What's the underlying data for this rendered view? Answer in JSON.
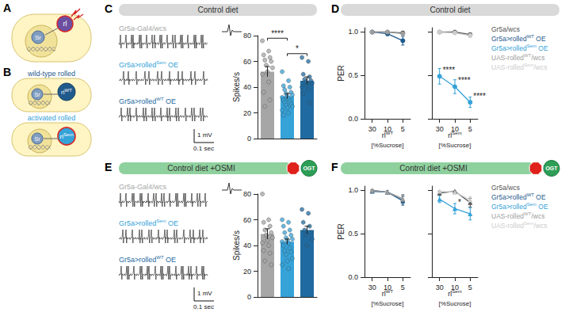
{
  "chart_data": [
    {
      "panel": "C",
      "type": "bar",
      "title": "Control diet",
      "ylabel": "Spikes/s",
      "categories": [
        null,
        null,
        null
      ],
      "traces": [
        {
          "text": "Gr5a-Gal4/wcs"
        },
        {
          "text": "Gr5a>rolled",
          "sup": "Sem",
          "after": " OE"
        },
        {
          "text": "Gr5a>rolled",
          "sup": "WT",
          "after": " OE"
        }
      ],
      "values": [
        52,
        33,
        45
      ],
      "errors": [
        4,
        2,
        3
      ],
      "colors": [
        "#a6a6a6",
        "#35a2d8",
        "#1f6aa0"
      ],
      "points": [
        [
          76,
          68,
          65,
          63,
          61,
          60,
          57,
          55,
          52,
          50,
          44,
          36,
          30,
          25
        ],
        [
          52,
          45,
          41,
          40,
          38,
          36,
          35,
          34,
          33,
          32,
          31,
          30,
          29,
          28,
          27,
          26,
          25,
          24,
          22,
          20,
          18
        ],
        [
          63,
          60,
          50,
          48,
          46,
          45,
          44,
          43,
          42,
          40,
          38,
          35,
          28
        ]
      ],
      "ylim": [
        0,
        80
      ],
      "yticks": [
        0,
        20,
        40,
        60,
        80
      ],
      "tick_labels": "y",
      "scale_bar": {
        "y": "1 mV",
        "x": "0.1 sec"
      },
      "significance": [
        {
          "from": 0,
          "to": 1,
          "y": 78,
          "label": "****"
        },
        {
          "from": 1,
          "to": 2,
          "y": 66,
          "label": "*"
        }
      ]
    },
    {
      "panel": "D",
      "type": "line",
      "title": "Control diet",
      "ylabel": "PER",
      "xlabel": "[%Sucrose]",
      "marker": "circle",
      "legend": "right",
      "ylim": [
        0,
        1.05
      ],
      "yticks": [
        {
          "value": 0,
          "label": "0.0"
        },
        {
          "value": 0.5,
          "label": "0.5"
        },
        {
          "value": 1,
          "label": "1.0"
        }
      ],
      "subplots": [
        {
          "label": {
            "text": "rl",
            "sup": "WT"
          },
          "categories": [
            "30",
            "10",
            "5"
          ]
        },
        {
          "label": {
            "text": "rl",
            "sup": "Sem"
          },
          "categories": [
            "30",
            "10",
            "5"
          ]
        }
      ],
      "series": [
        {
          "name": {
            "text": "Gr5a/wcs"
          },
          "color": "#555555",
          "values": [
            [
              1,
              1,
              0.99
            ],
            [
              1,
              1,
              0.97
            ]
          ],
          "errors": [
            [
              0.01,
              0.01,
              0.01
            ],
            [
              0.01,
              0.01,
              0.02
            ]
          ],
          "stars": [
            null,
            null
          ]
        },
        {
          "name": {
            "text": "Gr5a>rolled",
            "sup": "WT",
            "after": " OE"
          },
          "color": "#1f5a8c",
          "values": [
            [
              1,
              0.98,
              0.9
            ],
            null
          ],
          "errors": [
            [
              0.01,
              0.02,
              0.05
            ],
            null
          ],
          "stars": [
            null,
            null
          ]
        },
        {
          "name": {
            "text": "Gr5a>rolled",
            "sup": "Sem",
            "after": " OE"
          },
          "color": "#35a2d8",
          "values": [
            null,
            [
              0.49,
              0.37,
              0.19
            ]
          ],
          "errors": [
            null,
            [
              0.09,
              0.08,
              0.06
            ]
          ],
          "stars": [
            null,
            [
              "****",
              "****",
              "****"
            ]
          ]
        },
        {
          "name": {
            "text": "UAS-rolled",
            "sup": "WT",
            "after": "/wcs"
          },
          "color": "#9e9e9e",
          "values": [
            [
              1,
              1,
              0.98
            ],
            null
          ],
          "errors": [
            [
              0.01,
              0.01,
              0.02
            ],
            null
          ],
          "stars": [
            null,
            null
          ]
        },
        {
          "name": {
            "text": "UAS-rolled",
            "sup": "Sem",
            "after": "/wcs"
          },
          "color": "#cccccc",
          "values": [
            null,
            [
              1,
              0.99,
              0.96
            ]
          ],
          "errors": [
            null,
            [
              0.01,
              0.01,
              0.02
            ]
          ],
          "stars": [
            null,
            null
          ]
        }
      ]
    },
    {
      "panel": "E",
      "type": "bar",
      "title": "Control diet +OSMI",
      "enzyme": "OGT",
      "ylabel": "Spikes/s",
      "categories": [
        null,
        null,
        null
      ],
      "traces": [
        {
          "text": "Gr5a-Gal4/wcs"
        },
        {
          "text": "Gr5a>rolled",
          "sup": "Sem",
          "after": " OE"
        },
        {
          "text": "Gr5a>rolled",
          "sup": "WT",
          "after": " OE"
        }
      ],
      "values": [
        49,
        43,
        52
      ],
      "errors": [
        4,
        2,
        3
      ],
      "colors": [
        "#a6a6a6",
        "#35a2d8",
        "#1f6aa0"
      ],
      "points": [
        [
          80,
          60,
          58,
          55,
          52,
          50,
          48,
          46,
          44,
          42,
          40,
          36,
          34,
          28,
          25
        ],
        [
          60,
          58,
          55,
          52,
          50,
          48,
          46,
          45,
          44,
          43,
          42,
          40,
          38,
          36,
          35,
          33,
          30,
          28,
          25,
          22
        ],
        [
          68,
          65,
          58,
          55,
          52,
          50,
          48,
          45,
          40
        ]
      ],
      "ylim": [
        0,
        80
      ],
      "yticks": [
        0,
        20,
        40,
        60,
        80
      ],
      "tick_labels": "y",
      "scale_bar": {
        "y": "1 mV",
        "x": "0.1 sec"
      },
      "significance": []
    },
    {
      "panel": "F",
      "type": "line",
      "title": "Control diet +OSMI",
      "enzyme": "OGT",
      "ylabel": "PER",
      "xlabel": "[%Sucrose]",
      "marker": "triangle",
      "legend": "right",
      "ylim": [
        0,
        1.05
      ],
      "yticks": [
        {
          "value": 0,
          "label": "0.0"
        },
        {
          "value": 0.5,
          "label": "0.5"
        },
        {
          "value": 1,
          "label": "1.0"
        }
      ],
      "subplots": [
        {
          "label": {
            "text": "rl",
            "sup": "WT"
          },
          "categories": [
            "30",
            "10",
            "5"
          ]
        },
        {
          "label": {
            "text": "rl",
            "sup": "Sem"
          },
          "categories": [
            "30",
            "10",
            "5"
          ]
        }
      ],
      "series": [
        {
          "name": {
            "text": "Gr5a/wcs"
          },
          "color": "#555555",
          "values": [
            [
              1,
              0.98,
              0.9
            ],
            [
              0.97,
              0.99,
              0.86
            ]
          ],
          "errors": [
            [
              0.01,
              0.02,
              0.05
            ],
            [
              0.02,
              0.01,
              0.05
            ]
          ],
          "stars": [
            null,
            null
          ]
        },
        {
          "name": {
            "text": "Gr5a>rolled",
            "sup": "WT",
            "after": " OE"
          },
          "color": "#1f5a8c",
          "values": [
            [
              0.99,
              0.98,
              0.88
            ],
            null
          ],
          "errors": [
            [
              0.01,
              0.02,
              0.05
            ],
            null
          ],
          "stars": [
            null,
            null
          ]
        },
        {
          "name": {
            "text": "Gr5a>rolled",
            "sup": "Sem",
            "after": " OE"
          },
          "color": "#35a2d8",
          "values": [
            null,
            [
              0.9,
              0.79,
              0.73
            ]
          ],
          "errors": [
            null,
            [
              0.04,
              0.06,
              0.07
            ]
          ],
          "stars": [
            null,
            [
              null,
              "*",
              null
            ]
          ]
        },
        {
          "name": {
            "text": "UAS-rolled",
            "sup": "WT",
            "after": "/wcs"
          },
          "color": "#9e9e9e",
          "values": [
            [
              1,
              0.98,
              0.9
            ],
            null
          ],
          "errors": [
            [
              0.01,
              0.02,
              0.04
            ],
            null
          ],
          "stars": [
            null,
            null
          ]
        },
        {
          "name": {
            "text": "UAS-rolled",
            "sup": "Sem",
            "after": "/wcs"
          },
          "color": "#cccccc",
          "values": [
            null,
            [
              0.99,
              0.98,
              0.89
            ]
          ],
          "errors": [
            null,
            [
              0.01,
              0.02,
              0.04
            ]
          ],
          "stars": [
            null,
            null
          ]
        }
      ]
    }
  ],
  "diagrams": {
    "A": {
      "letter": "A",
      "rl": "rl",
      "sr": "Sr"
    },
    "B": {
      "letter": "B",
      "cells": [
        {
          "title": "wild-type rolled",
          "rl": {
            "text": "rl",
            "sup": "WT"
          },
          "sr": "Sr"
        },
        {
          "title": "activated rolled",
          "rl": {
            "text": "rl",
            "sup": "Sem"
          },
          "sr": "Sr"
        }
      ]
    }
  }
}
